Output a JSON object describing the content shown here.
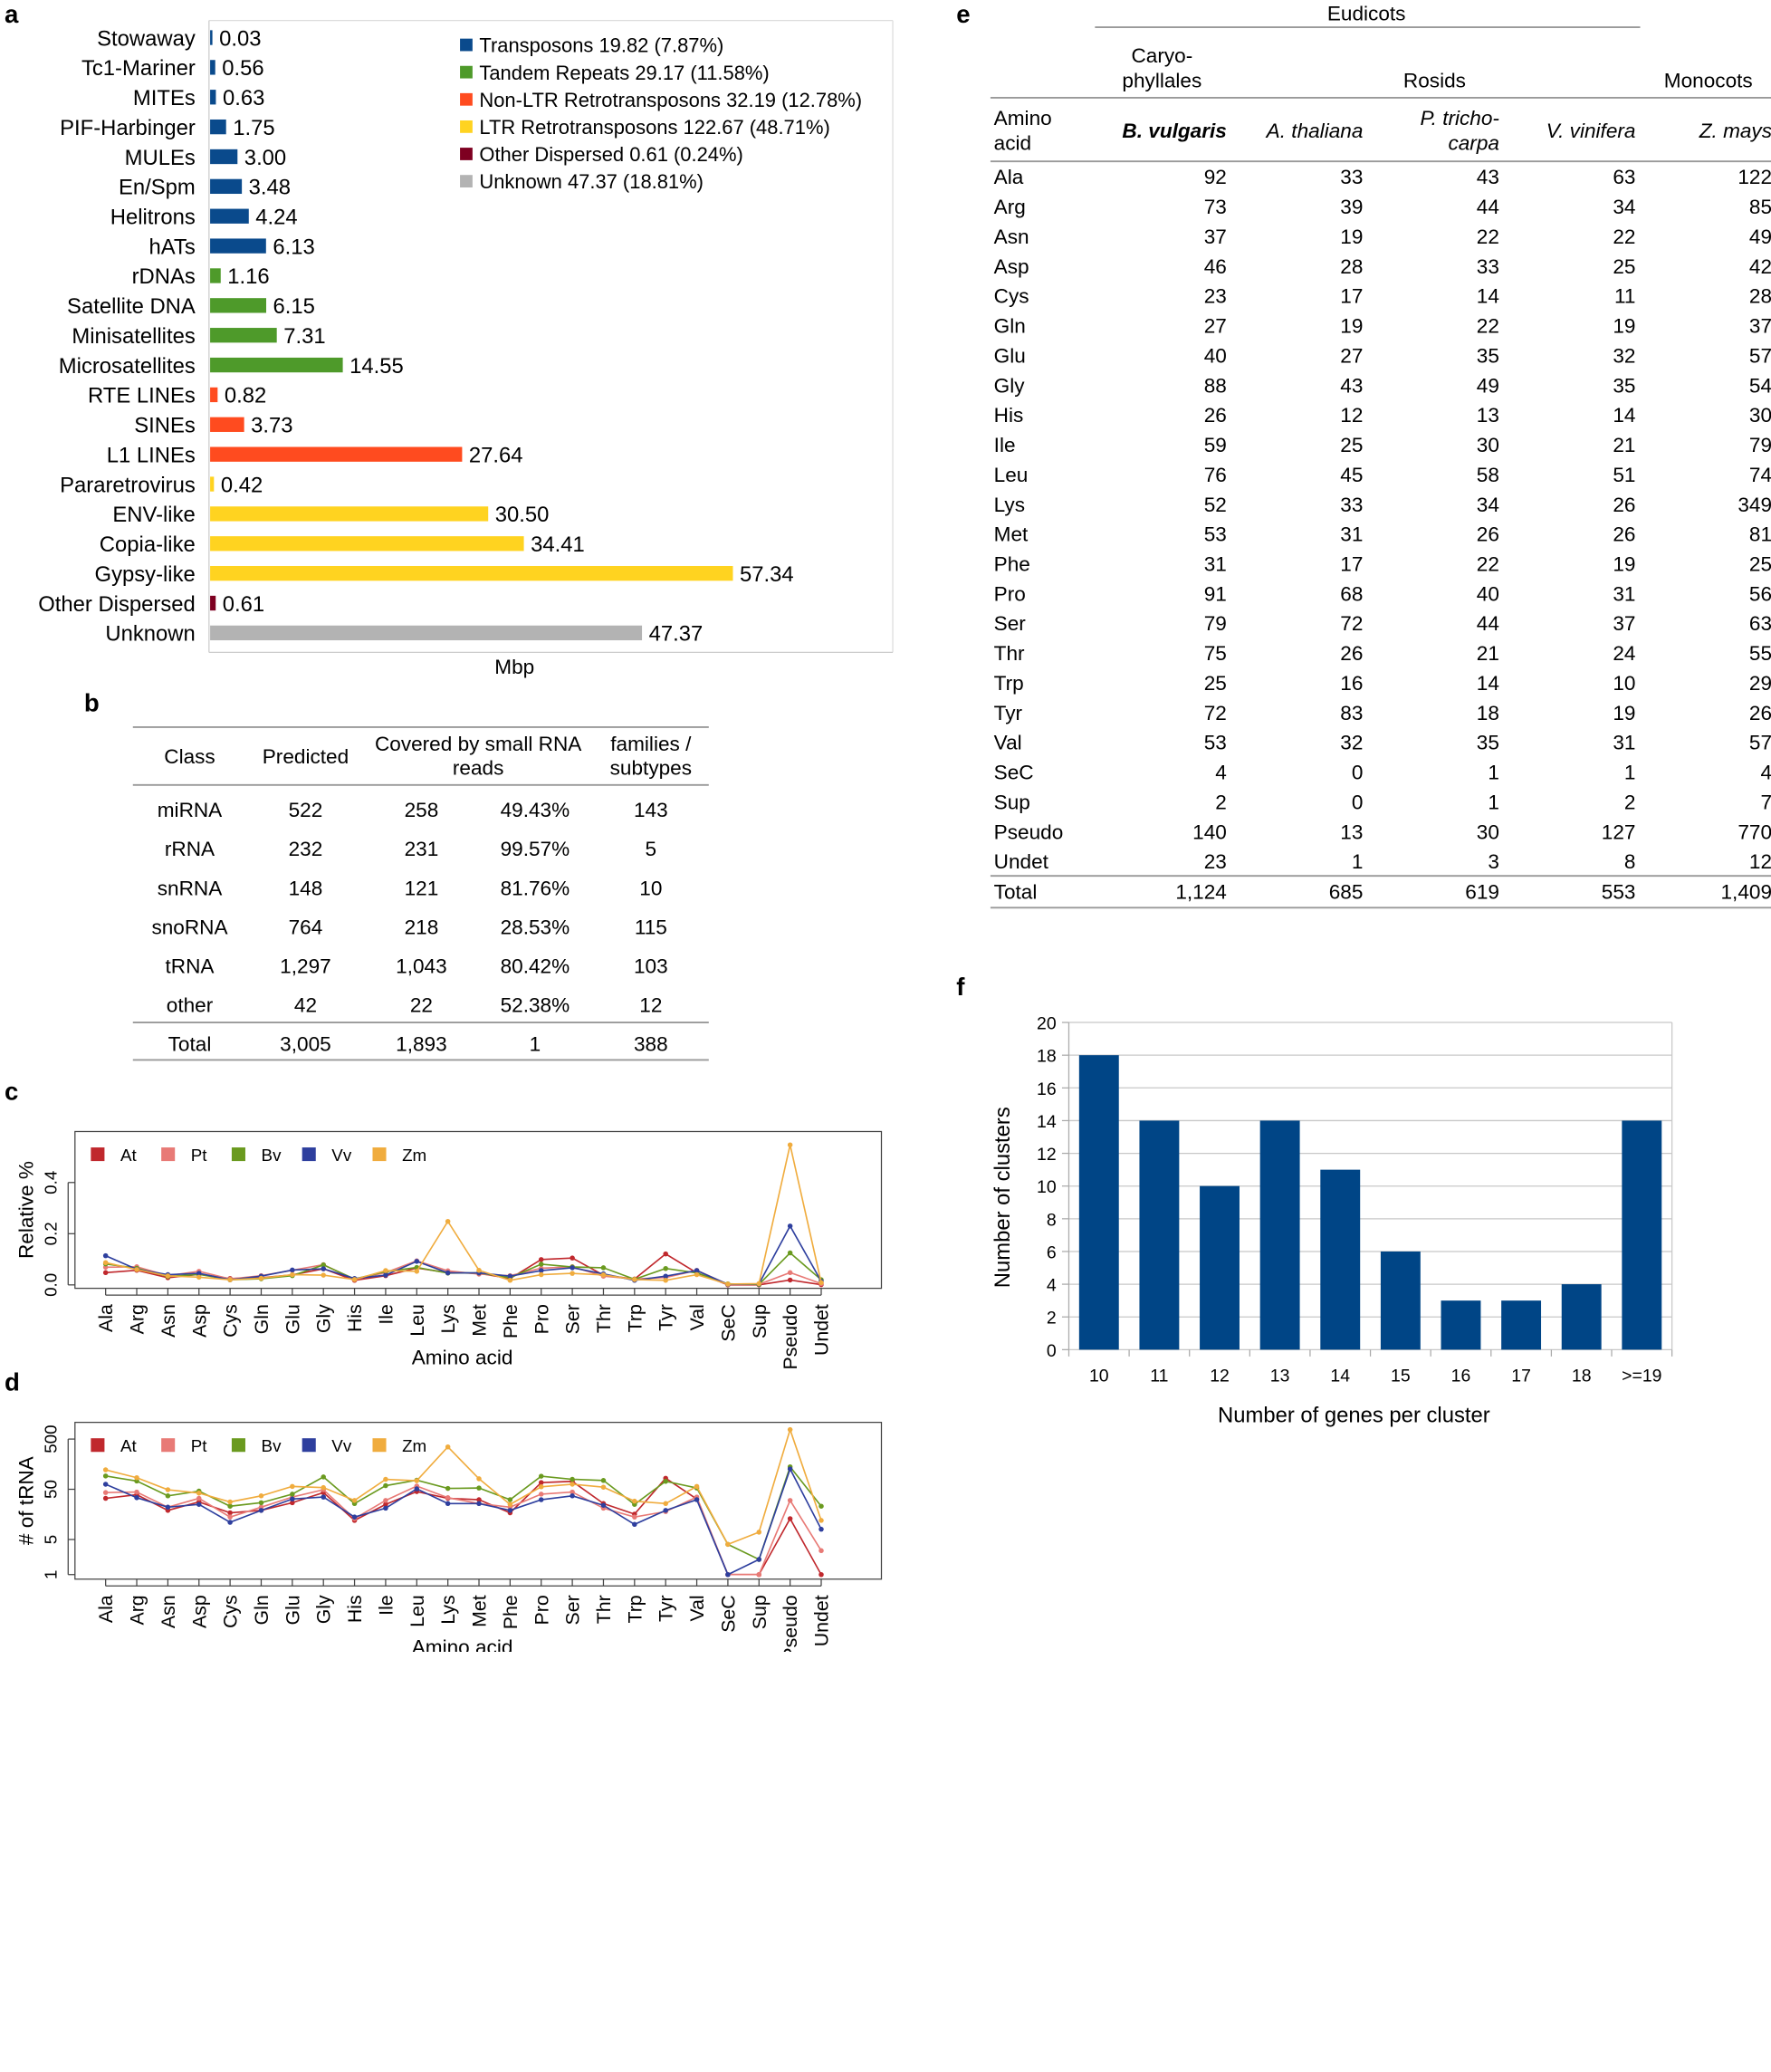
{
  "chart_data": [
    {
      "panel": "a",
      "type": "bar",
      "orientation": "horizontal",
      "xlabel": "Mbp",
      "categories": [
        "Stowaway",
        "Tc1-Mariner",
        "MITEs",
        "PIF-Harbinger",
        "MULEs",
        "En/Spm",
        "Helitrons",
        "hATs",
        "rDNAs",
        "Satellite DNA",
        "Minisatellites",
        "Microsatellites",
        "RTE LINEs",
        "SINEs",
        "L1 LINEs",
        "Pararetrovirus",
        "ENV-like",
        "Copia-like",
        "Gypsy-like",
        "Other Dispersed",
        "Unknown"
      ],
      "values": [
        0.03,
        0.56,
        0.63,
        1.75,
        3.0,
        3.48,
        4.24,
        6.13,
        1.16,
        6.15,
        7.31,
        14.55,
        0.82,
        3.73,
        27.64,
        0.42,
        30.5,
        34.41,
        57.34,
        0.61,
        47.37
      ],
      "value_labels": [
        "0.03",
        "0.56",
        "0.63",
        "1.75",
        "3.00",
        "3.48",
        "4.24",
        "6.13",
        "1.16",
        "6.15",
        "7.31",
        "14.55",
        "0.82",
        "3.73",
        "27.64",
        "0.42",
        "30.50",
        "34.41",
        "57.34",
        "0.61",
        "47.37"
      ],
      "groups": [
        0,
        0,
        0,
        0,
        0,
        0,
        0,
        0,
        1,
        1,
        1,
        1,
        2,
        2,
        2,
        3,
        3,
        3,
        3,
        4,
        5
      ],
      "xlim": [
        0,
        75
      ],
      "legend_position": "top-right",
      "legend": [
        {
          "label": "Transposons 19.82 (7.87%)",
          "color": "#0a4a8c"
        },
        {
          "label": "Tandem Repeats 29.17 (11.58%)",
          "color": "#4e9a2a"
        },
        {
          "label": "Non-LTR Retrotransposons 32.19 (12.78%)",
          "color": "#ff4b1f"
        },
        {
          "label": "LTR Retrotransposons 122.67 (48.71%)",
          "color": "#ffd320"
        },
        {
          "label": "Other Dispersed 0.61 (0.24%)",
          "color": "#7e0021"
        },
        {
          "label": "Unknown 47.37 (18.81%)",
          "color": "#b3b3b3"
        }
      ]
    },
    {
      "panel": "b",
      "type": "table",
      "headers": [
        "Class",
        "Predicted",
        "Covered by small RNA reads",
        "",
        "families / subtypes"
      ],
      "header_lines": {
        "covered": [
          "Covered by small RNA",
          "reads"
        ],
        "families": [
          "families /",
          "subtypes"
        ]
      },
      "rows": [
        [
          "miRNA",
          "522",
          "258",
          "49.43%",
          "143"
        ],
        [
          "rRNA",
          "232",
          "231",
          "99.57%",
          "5"
        ],
        [
          "snRNA",
          "148",
          "121",
          "81.76%",
          "10"
        ],
        [
          "snoRNA",
          "764",
          "218",
          "28.53%",
          "115"
        ],
        [
          "tRNA",
          "1,297",
          "1,043",
          "80.42%",
          "103"
        ],
        [
          "other",
          "42",
          "22",
          "52.38%",
          "12"
        ]
      ],
      "total": [
        "Total",
        "3,005",
        "1,893",
        "1",
        "388"
      ]
    },
    {
      "panel": "c",
      "type": "line",
      "ylabel": "Relative %",
      "xlabel": "Amino acid",
      "ylim": [
        0,
        0.45
      ],
      "yticks": [
        "0.0",
        "0.2",
        "0.4"
      ],
      "legend_position": "top-left",
      "x": [
        "Ala",
        "Arg",
        "Asn",
        "Asp",
        "Cys",
        "Gln",
        "Glu",
        "Gly",
        "His",
        "Ile",
        "Leu",
        "Lys",
        "Met",
        "Phe",
        "Pro",
        "Ser",
        "Thr",
        "Trp",
        "Tyr",
        "Val",
        "SeC",
        "Sup",
        "Pseudo",
        "Undet"
      ],
      "series": [
        {
          "name": "At",
          "color": "#c0282d",
          "values": [
            0.048,
            0.057,
            0.028,
            0.041,
            0.025,
            0.028,
            0.039,
            0.063,
            0.018,
            0.036,
            0.066,
            0.048,
            0.045,
            0.025,
            0.099,
            0.105,
            0.038,
            0.023,
            0.121,
            0.047,
            0.0,
            0.0,
            0.019,
            0.001
          ]
        },
        {
          "name": "Pt",
          "color": "#e87a76",
          "values": [
            0.069,
            0.071,
            0.036,
            0.053,
            0.023,
            0.036,
            0.057,
            0.079,
            0.021,
            0.048,
            0.094,
            0.055,
            0.042,
            0.036,
            0.065,
            0.071,
            0.034,
            0.023,
            0.029,
            0.057,
            0.002,
            0.002,
            0.048,
            0.005
          ]
        },
        {
          "name": "Bv",
          "color": "#6a9a1f",
          "values": [
            0.082,
            0.065,
            0.033,
            0.041,
            0.02,
            0.024,
            0.036,
            0.078,
            0.023,
            0.052,
            0.068,
            0.046,
            0.047,
            0.028,
            0.081,
            0.07,
            0.067,
            0.022,
            0.064,
            0.047,
            0.004,
            0.002,
            0.125,
            0.02
          ]
        },
        {
          "name": "Vv",
          "color": "#2e3f9e",
          "values": [
            0.114,
            0.061,
            0.04,
            0.045,
            0.02,
            0.034,
            0.058,
            0.063,
            0.025,
            0.038,
            0.092,
            0.047,
            0.047,
            0.034,
            0.056,
            0.067,
            0.043,
            0.018,
            0.034,
            0.056,
            0.002,
            0.004,
            0.23,
            0.014
          ]
        },
        {
          "name": "Zm",
          "color": "#f0ac3e",
          "values": [
            0.087,
            0.06,
            0.035,
            0.03,
            0.02,
            0.026,
            0.04,
            0.038,
            0.021,
            0.056,
            0.053,
            0.248,
            0.057,
            0.018,
            0.04,
            0.045,
            0.039,
            0.021,
            0.018,
            0.04,
            0.003,
            0.005,
            0.547,
            0.009
          ]
        }
      ]
    },
    {
      "panel": "d",
      "type": "line",
      "ylabel": "# of tRNA",
      "xlabel": "Amino acid",
      "yscale": "log",
      "ylim": [
        0.8,
        800
      ],
      "yticks": [
        1,
        5,
        50,
        500
      ],
      "legend_position": "top-left",
      "x": [
        "Ala",
        "Arg",
        "Asn",
        "Asp",
        "Cys",
        "Gln",
        "Glu",
        "Gly",
        "His",
        "Ile",
        "Leu",
        "Lys",
        "Met",
        "Phe",
        "Pro",
        "Ser",
        "Thr",
        "Trp",
        "Tyr",
        "Val",
        "SeC",
        "Sup",
        "Pseudo",
        "Undet"
      ],
      "series": [
        {
          "name": "At",
          "color": "#c0282d",
          "values": [
            33,
            39,
            19,
            28,
            17,
            19,
            27,
            43,
            12,
            25,
            45,
            33,
            31,
            17,
            68,
            72,
            26,
            16,
            83,
            32,
            1,
            1,
            13,
            1
          ]
        },
        {
          "name": "Pt",
          "color": "#e87a76",
          "values": [
            43,
            44,
            22,
            33,
            14,
            22,
            35,
            49,
            13,
            30,
            58,
            34,
            26,
            22,
            40,
            44,
            21,
            14,
            18,
            35,
            1,
            1,
            30,
            3
          ]
        },
        {
          "name": "Bv",
          "color": "#6a9a1f",
          "values": [
            92,
            73,
            37,
            46,
            23,
            27,
            40,
            88,
            26,
            59,
            76,
            52,
            53,
            31,
            91,
            79,
            75,
            25,
            72,
            53,
            4,
            2,
            140,
            23
          ]
        },
        {
          "name": "Vv",
          "color": "#2e3f9e",
          "values": [
            63,
            34,
            22,
            25,
            11,
            19,
            32,
            35,
            14,
            21,
            51,
            26,
            26,
            19,
            31,
            37,
            24,
            10,
            19,
            31,
            1,
            2,
            127,
            8
          ]
        },
        {
          "name": "Zm",
          "color": "#f0ac3e",
          "values": [
            122,
            85,
            49,
            42,
            28,
            37,
            57,
            54,
            30,
            79,
            74,
            349,
            81,
            25,
            56,
            63,
            55,
            29,
            26,
            57,
            4,
            7,
            770,
            12
          ]
        }
      ]
    },
    {
      "panel": "e",
      "type": "table",
      "group_headers": {
        "eudicots": "Eudicots",
        "caryophyllales_1": "Caryo-",
        "caryophyllales_2": "phyllales",
        "rosids": "Rosids",
        "monocots": "Monocots"
      },
      "corner_header": [
        "Amino",
        "acid"
      ],
      "species": [
        "B. vulgaris",
        "A. thaliana",
        "P. tricho-",
        "carpa",
        "V. vinifera",
        "Z. mays"
      ],
      "rows": [
        [
          "Ala",
          "92",
          "33",
          "43",
          "63",
          "122"
        ],
        [
          "Arg",
          "73",
          "39",
          "44",
          "34",
          "85"
        ],
        [
          "Asn",
          "37",
          "19",
          "22",
          "22",
          "49"
        ],
        [
          "Asp",
          "46",
          "28",
          "33",
          "25",
          "42"
        ],
        [
          "Cys",
          "23",
          "17",
          "14",
          "11",
          "28"
        ],
        [
          "Gln",
          "27",
          "19",
          "22",
          "19",
          "37"
        ],
        [
          "Glu",
          "40",
          "27",
          "35",
          "32",
          "57"
        ],
        [
          "Gly",
          "88",
          "43",
          "49",
          "35",
          "54"
        ],
        [
          "His",
          "26",
          "12",
          "13",
          "14",
          "30"
        ],
        [
          "Ile",
          "59",
          "25",
          "30",
          "21",
          "79"
        ],
        [
          "Leu",
          "76",
          "45",
          "58",
          "51",
          "74"
        ],
        [
          "Lys",
          "52",
          "33",
          "34",
          "26",
          "349"
        ],
        [
          "Met",
          "53",
          "31",
          "26",
          "26",
          "81"
        ],
        [
          "Phe",
          "31",
          "17",
          "22",
          "19",
          "25"
        ],
        [
          "Pro",
          "91",
          "68",
          "40",
          "31",
          "56"
        ],
        [
          "Ser",
          "79",
          "72",
          "44",
          "37",
          "63"
        ],
        [
          "Thr",
          "75",
          "26",
          "21",
          "24",
          "55"
        ],
        [
          "Trp",
          "25",
          "16",
          "14",
          "10",
          "29"
        ],
        [
          "Tyr",
          "72",
          "83",
          "18",
          "19",
          "26"
        ],
        [
          "Val",
          "53",
          "32",
          "35",
          "31",
          "57"
        ],
        [
          "SeC",
          "4",
          "0",
          "1",
          "1",
          "4"
        ],
        [
          "Sup",
          "2",
          "0",
          "1",
          "2",
          "7"
        ],
        [
          "Pseudo",
          "140",
          "13",
          "30",
          "127",
          "770"
        ],
        [
          "Undet",
          "23",
          "1",
          "3",
          "8",
          "12"
        ]
      ],
      "total": [
        "Total",
        "1,124",
        "685",
        "619",
        "553",
        "1,409"
      ]
    },
    {
      "panel": "f",
      "type": "bar",
      "xlabel": "Number of genes per cluster",
      "ylabel": "Number of clusters",
      "categories": [
        "10",
        "11",
        "12",
        "13",
        "14",
        "15",
        "16",
        "17",
        "18",
        ">=19"
      ],
      "values": [
        18,
        14,
        10,
        14,
        11,
        6,
        3,
        3,
        4,
        14
      ],
      "ylim": [
        0,
        20
      ],
      "yticks": [
        0,
        2,
        4,
        6,
        8,
        10,
        12,
        14,
        16,
        18,
        20
      ],
      "color": "#004586"
    }
  ],
  "panel_labels": {
    "a": "a",
    "b": "b",
    "c": "c",
    "d": "d",
    "e": "e",
    "f": "f"
  }
}
